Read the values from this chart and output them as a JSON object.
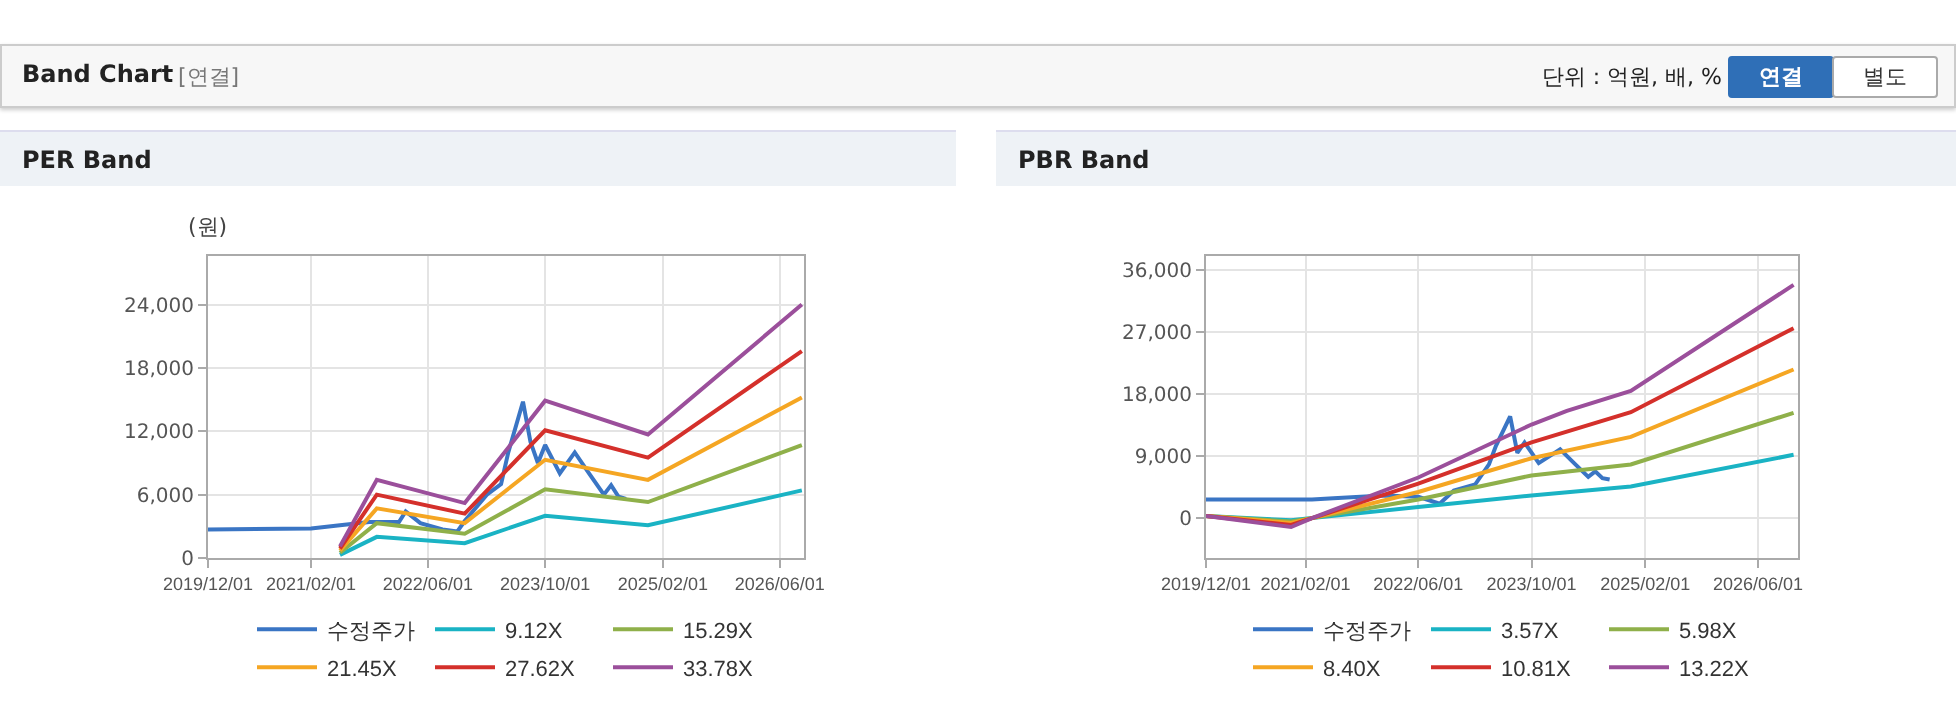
{
  "chart_data": [
    {
      "type": "line",
      "title": "PER Band",
      "ylabel": "(원)",
      "annotations": [
        "Band Chart",
        "[연결]",
        "단위 : 억원, 배, %",
        "연결",
        "별도"
      ],
      "xlim": [
        "2019-12-01",
        "2026-09-10"
      ],
      "ylim": [
        0,
        28600
      ],
      "xticks": [
        {
          "value": "2019-12-01",
          "label": "2019/12/01"
        },
        {
          "value": "2021-02-01",
          "label": "2021/02/01"
        },
        {
          "value": "2022-06-01",
          "label": "2022/06/01"
        },
        {
          "value": "2023-10-01",
          "label": "2023/10/01"
        },
        {
          "value": "2025-02-01",
          "label": "2025/02/01"
        },
        {
          "value": "2026-06-01",
          "label": "2026/06/01"
        }
      ],
      "yticks": [
        {
          "value": 0,
          "label": "0"
        },
        {
          "value": 6000,
          "label": "6,000"
        },
        {
          "value": 12000,
          "label": "12,000"
        },
        {
          "value": 18000,
          "label": "18,000"
        },
        {
          "value": 24000,
          "label": "24,000"
        }
      ],
      "grid": true,
      "legend": "bottom",
      "marker": "none",
      "line_style": "solid",
      "series": [
        {
          "name": "수정주가",
          "color": "#3a75c4",
          "x": [
            "2019-12",
            "2021-02",
            "2021-06",
            "2021-10",
            "2022-02",
            "2022-03",
            "2022-05",
            "2022-08",
            "2022-10",
            "2022-11",
            "2023-02",
            "2023-04",
            "2023-05",
            "2023-07",
            "2023-08",
            "2023-09",
            "2023-10",
            "2023-12",
            "2024-02",
            "2024-04",
            "2024-06",
            "2024-07",
            "2024-08",
            "2024-09"
          ],
          "values": [
            2700,
            2800,
            3100,
            3400,
            3400,
            4400,
            3300,
            2700,
            2500,
            3500,
            6000,
            7000,
            10000,
            14800,
            11000,
            9000,
            10700,
            8000,
            10000,
            8000,
            6000,
            6900,
            5800,
            5600
          ]
        },
        {
          "name": "9.12X",
          "color": "#1ab3c4",
          "x": [
            "2021-06",
            "2021-11",
            "2022-11",
            "2023-10",
            "2024-12",
            "2026-09"
          ],
          "values": [
            300,
            2000,
            1400,
            4000,
            3100,
            6400
          ]
        },
        {
          "name": "15.29X",
          "color": "#8fb04a",
          "x": [
            "2021-06",
            "2021-11",
            "2022-11",
            "2023-10",
            "2024-12",
            "2026-09"
          ],
          "values": [
            500,
            3300,
            2300,
            6500,
            5300,
            10700
          ]
        },
        {
          "name": "21.45X",
          "color": "#f5a623",
          "x": [
            "2021-06",
            "2021-11",
            "2022-11",
            "2023-10",
            "2024-12",
            "2026-09"
          ],
          "values": [
            700,
            4700,
            3300,
            9300,
            7400,
            15200
          ]
        },
        {
          "name": "27.62X",
          "color": "#d4302b",
          "x": [
            "2021-06",
            "2021-11",
            "2022-11",
            "2023-10",
            "2024-12",
            "2026-09"
          ],
          "values": [
            900,
            6000,
            4200,
            12100,
            9500,
            19600
          ]
        },
        {
          "name": "33.78X",
          "color": "#9b4f9b",
          "x": [
            "2021-06",
            "2021-11",
            "2022-11",
            "2023-10",
            "2024-12",
            "2026-09"
          ],
          "values": [
            1100,
            7400,
            5200,
            14900,
            11700,
            24000
          ]
        }
      ]
    },
    {
      "type": "line",
      "title": "PBR Band",
      "xlim": [
        "2019-12-01",
        "2026-11-20"
      ],
      "ylim": [
        -5800,
        38100
      ],
      "xticks": [
        {
          "value": "2019-12-01",
          "label": "2019/12/01"
        },
        {
          "value": "2021-02-01",
          "label": "2021/02/01"
        },
        {
          "value": "2022-06-01",
          "label": "2022/06/01"
        },
        {
          "value": "2023-10-01",
          "label": "2023/10/01"
        },
        {
          "value": "2025-02-01",
          "label": "2025/02/01"
        },
        {
          "value": "2026-06-01",
          "label": "2026/06/01"
        }
      ],
      "yticks": [
        {
          "value": 0,
          "label": "0"
        },
        {
          "value": 9000,
          "label": "9,000"
        },
        {
          "value": 18000,
          "label": "18,000"
        },
        {
          "value": 27000,
          "label": "27,000"
        },
        {
          "value": 36000,
          "label": "36,000"
        }
      ],
      "grid": true,
      "legend": "bottom",
      "marker": "none",
      "line_style": "solid",
      "series": [
        {
          "name": "수정주가",
          "color": "#3a75c4",
          "x": [
            "2019-12",
            "2021-03",
            "2021-06",
            "2022-01",
            "2022-06",
            "2022-09",
            "2022-11",
            "2023-02",
            "2023-04",
            "2023-05",
            "2023-07",
            "2023-08",
            "2023-09",
            "2023-11",
            "2024-02",
            "2024-04",
            "2024-06",
            "2024-07",
            "2024-08",
            "2024-09"
          ],
          "values": [
            2700,
            2700,
            2900,
            3300,
            3100,
            2100,
            4000,
            4900,
            7800,
            10500,
            14800,
            9500,
            11000,
            8000,
            10000,
            8000,
            6000,
            6800,
            5800,
            5600
          ]
        },
        {
          "name": "3.57X",
          "color": "#1ab3c4",
          "x": [
            "2019-12",
            "2020-12",
            "2021-03",
            "2022-06",
            "2023-10",
            "2024-12",
            "2026-11"
          ],
          "values": [
            300,
            -300,
            0,
            1600,
            3300,
            4600,
            9200
          ]
        },
        {
          "name": "5.98X",
          "color": "#8fb04a",
          "x": [
            "2019-12",
            "2020-12",
            "2021-03",
            "2022-06",
            "2023-10",
            "2024-12",
            "2026-11"
          ],
          "values": [
            300,
            -500,
            0,
            2700,
            6200,
            7800,
            15300
          ]
        },
        {
          "name": "8.40X",
          "color": "#f5a623",
          "x": [
            "2019-12",
            "2020-12",
            "2021-03",
            "2022-06",
            "2023-10",
            "2024-12",
            "2026-11"
          ],
          "values": [
            300,
            -700,
            0,
            3800,
            8700,
            11800,
            21600
          ]
        },
        {
          "name": "10.81X",
          "color": "#d4302b",
          "x": [
            "2019-12",
            "2020-12",
            "2021-03",
            "2022-06",
            "2023-10",
            "2024-12",
            "2026-11"
          ],
          "values": [
            300,
            -1000,
            0,
            5000,
            11000,
            15400,
            27600
          ]
        },
        {
          "name": "13.22X",
          "color": "#9b4f9b",
          "x": [
            "2019-12",
            "2020-12",
            "2021-03",
            "2022-06",
            "2023-10",
            "2024-03",
            "2024-12",
            "2026-11"
          ],
          "values": [
            300,
            -1300,
            0,
            5900,
            13600,
            15600,
            18500,
            33900
          ]
        }
      ]
    }
  ]
}
